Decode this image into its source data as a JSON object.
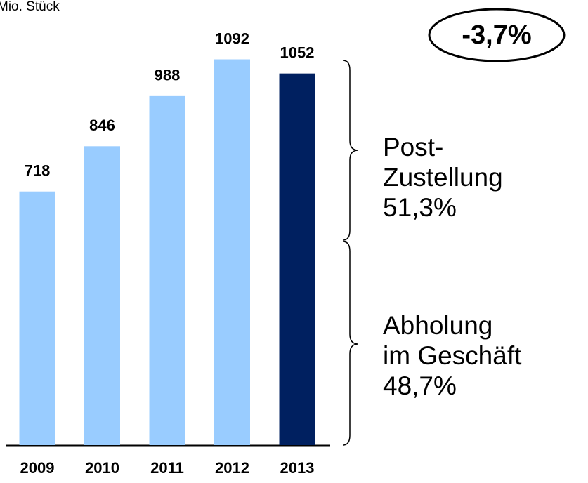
{
  "chart_data": {
    "type": "bar",
    "title": "Mio. Stück",
    "categories": [
      "2009",
      "2010",
      "2011",
      "2012",
      "2013"
    ],
    "values": [
      718,
      846,
      988,
      1092,
      1052
    ],
    "colors": [
      "#99ccff",
      "#99ccff",
      "#99ccff",
      "#99ccff",
      "#002060"
    ],
    "ylim": [
      0,
      1260
    ],
    "badge": "-3,7%",
    "brace_labels": [
      [
        "Post-",
        "Zustellung",
        "51,3%"
      ],
      [
        "Abholung",
        "im Geschäft",
        "48,7%"
      ]
    ]
  }
}
